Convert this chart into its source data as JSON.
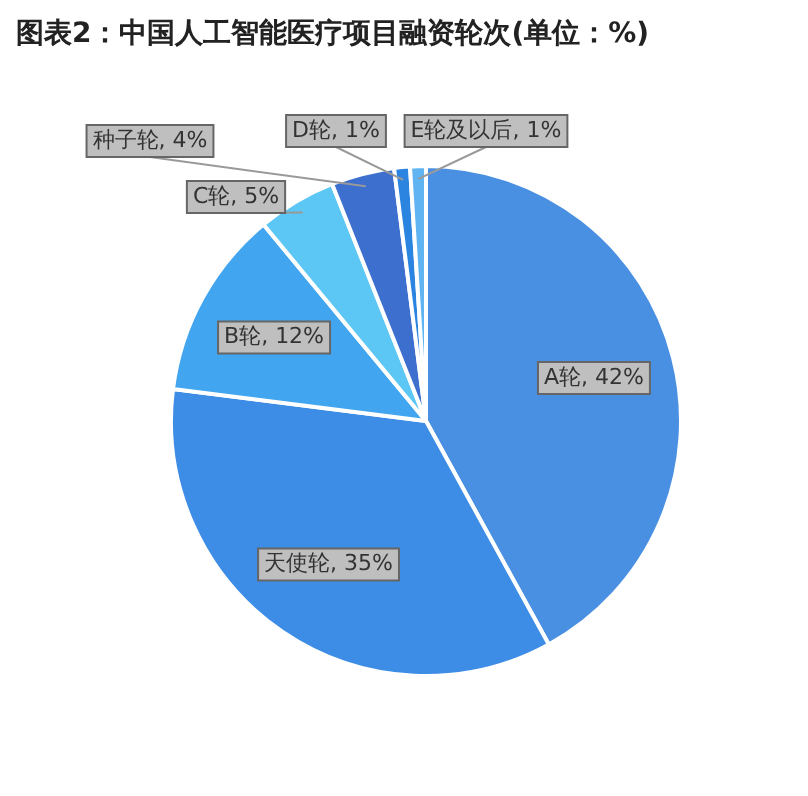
{
  "chart_data": {
    "type": "pie",
    "title": "图表2：中国人工智能医疗项目融资轮次(单位：%)",
    "categories": [
      "A轮",
      "天使轮",
      "B轮",
      "C轮",
      "种子轮",
      "D轮",
      "E轮及以后"
    ],
    "values": [
      42,
      35,
      12,
      5,
      4,
      1,
      1
    ],
    "value_labels": [
      "42%",
      "35%",
      "12%",
      "5%",
      "4%",
      "1%",
      "1%"
    ],
    "colors": [
      "#4a90e2",
      "#3d8de6",
      "#41a5ef",
      "#5cc6f4",
      "#3d6fcf",
      "#2a84e0",
      "#60b4f2"
    ],
    "legend": false
  }
}
